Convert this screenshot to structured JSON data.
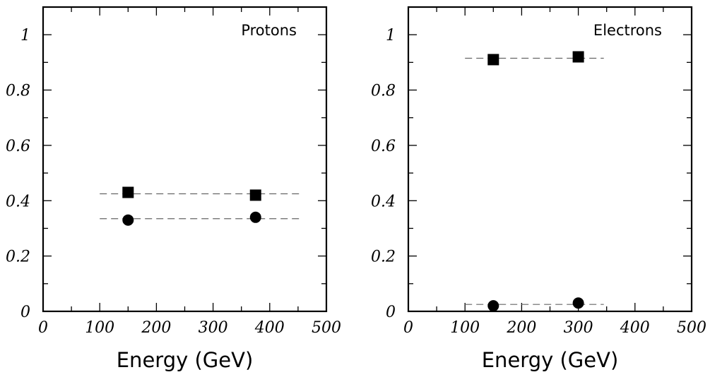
{
  "chart_data": [
    {
      "type": "scatter",
      "title": "Protons",
      "xlabel": "Energy (GeV)",
      "ylabel": "",
      "xlim": [
        0,
        500
      ],
      "ylim": [
        0,
        1.1
      ],
      "x_ticks": [
        "0",
        "100",
        "200",
        "300",
        "400",
        "500"
      ],
      "y_ticks": [
        "0",
        "0.2",
        "0.4",
        "0.6",
        "0.8",
        "1"
      ],
      "legend": "none",
      "grid": false,
      "series": [
        {
          "marker": "square",
          "x": [
            150,
            375
          ],
          "y": [
            0.43,
            0.42
          ]
        },
        {
          "marker": "circle",
          "x": [
            150,
            375
          ],
          "y": [
            0.33,
            0.34
          ]
        }
      ],
      "reference_lines": [
        {
          "y": 0.425,
          "x": [
            100,
            455
          ]
        },
        {
          "y": 0.335,
          "x": [
            100,
            455
          ]
        }
      ]
    },
    {
      "type": "scatter",
      "title": "Electrons",
      "xlabel": "Energy (GeV)",
      "ylabel": "",
      "xlim": [
        0,
        500
      ],
      "ylim": [
        0,
        1.1
      ],
      "x_ticks": [
        "0",
        "100",
        "200",
        "300",
        "400",
        "500"
      ],
      "y_ticks": [
        "0",
        "0.2",
        "0.4",
        "0.6",
        "0.8",
        "1"
      ],
      "legend": "none",
      "grid": false,
      "series": [
        {
          "marker": "square",
          "x": [
            150,
            300
          ],
          "y": [
            0.91,
            0.92
          ]
        },
        {
          "marker": "circle",
          "x": [
            150,
            300
          ],
          "y": [
            0.02,
            0.03
          ]
        }
      ],
      "reference_lines": [
        {
          "y": 0.915,
          "x": [
            100,
            345
          ]
        },
        {
          "y": 0.025,
          "x": [
            100,
            345
          ]
        }
      ]
    }
  ]
}
